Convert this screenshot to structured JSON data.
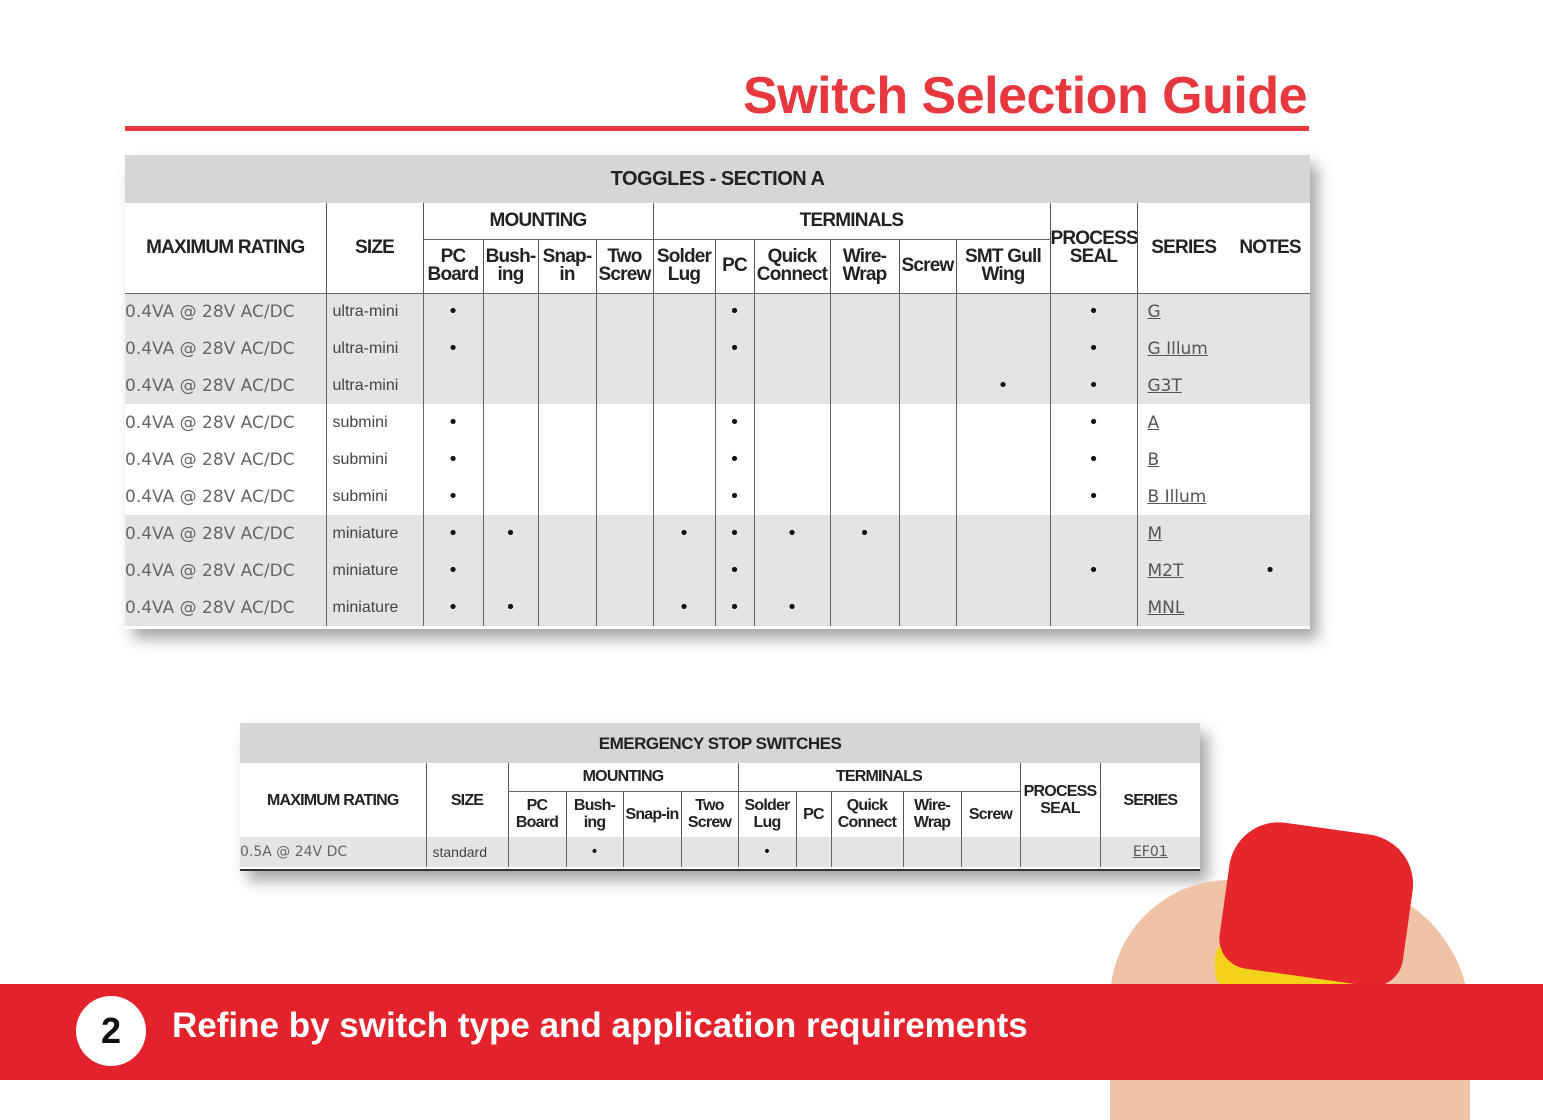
{
  "page_title": "Switch Selection Guide",
  "toggles": {
    "section_title": "TOGGLES - SECTION A",
    "headers": {
      "max_rating": "MAXIMUM RATING",
      "size": "SIZE",
      "mounting": "MOUNTING",
      "terminals": "TERMINALS",
      "process_seal": "PROCESS SEAL",
      "series": "SERIES",
      "notes": "NOTES",
      "mounting_cols": [
        "PC Board",
        "Bush-ing",
        "Snap-in",
        "Two Screw"
      ],
      "terminal_cols": [
        "Solder Lug",
        "PC",
        "Quick Connect",
        "Wire-Wrap",
        "Screw",
        "SMT Gull Wing"
      ]
    },
    "flag_keys": [
      "pc_board",
      "bushing",
      "snap_in",
      "two_screw",
      "solder_lug",
      "pc",
      "quick_connect",
      "wire_wrap",
      "screw",
      "smt_gull_wing",
      "process_seal"
    ],
    "rows": [
      {
        "rating": "0.4VA @ 28V AC/DC",
        "size": "ultra-mini",
        "series": "G",
        "flags": [
          "pc_board",
          "pc",
          "process_seal"
        ],
        "notes": false
      },
      {
        "rating": "0.4VA @ 28V AC/DC",
        "size": "ultra-mini",
        "series": "G Illum",
        "flags": [
          "pc_board",
          "pc",
          "process_seal"
        ],
        "notes": false
      },
      {
        "rating": "0.4VA @ 28V AC/DC",
        "size": "ultra-mini",
        "series": "G3T",
        "flags": [
          "smt_gull_wing",
          "process_seal"
        ],
        "notes": false
      },
      {
        "rating": "0.4VA @ 28V AC/DC",
        "size": "submini",
        "series": "A",
        "flags": [
          "pc_board",
          "pc",
          "process_seal"
        ],
        "notes": false
      },
      {
        "rating": "0.4VA @ 28V AC/DC",
        "size": "submini",
        "series": "B",
        "flags": [
          "pc_board",
          "pc",
          "process_seal"
        ],
        "notes": false
      },
      {
        "rating": "0.4VA @ 28V AC/DC",
        "size": "submini",
        "series": "B Illum",
        "flags": [
          "pc_board",
          "pc",
          "process_seal"
        ],
        "notes": false
      },
      {
        "rating": "0.4VA @ 28V AC/DC",
        "size": "miniature",
        "series": "M",
        "flags": [
          "pc_board",
          "bushing",
          "solder_lug",
          "pc",
          "quick_connect",
          "wire_wrap"
        ],
        "notes": false
      },
      {
        "rating": "0.4VA @ 28V AC/DC",
        "size": "miniature",
        "series": "M2T",
        "flags": [
          "pc_board",
          "pc",
          "process_seal"
        ],
        "notes": true
      },
      {
        "rating": "0.4VA @ 28V AC/DC",
        "size": "miniature",
        "series": "MNL",
        "flags": [
          "pc_board",
          "bushing",
          "solder_lug",
          "pc",
          "quick_connect"
        ],
        "notes": false
      }
    ]
  },
  "estop": {
    "section_title": "EMERGENCY STOP SWITCHES",
    "headers": {
      "max_rating": "MAXIMUM RATING",
      "size": "SIZE",
      "mounting": "MOUNTING",
      "terminals": "TERMINALS",
      "process_seal": "PROCESS SEAL",
      "series": "SERIES",
      "mounting_cols": [
        "PC Board",
        "Bush-ing",
        "Snap-in",
        "Two Screw"
      ],
      "terminal_cols": [
        "Solder Lug",
        "PC",
        "Quick Connect",
        "Wire-Wrap",
        "Screw"
      ]
    },
    "flag_keys": [
      "pc_board",
      "bushing",
      "snap_in",
      "two_screw",
      "solder_lug",
      "pc",
      "quick_connect",
      "wire_wrap",
      "screw",
      "process_seal"
    ],
    "rows": [
      {
        "rating": "0.5A @ 24V DC",
        "size": "standard",
        "series": "EF01",
        "flags": [
          "bushing",
          "solder_lug"
        ]
      }
    ]
  },
  "dot_symbol": "•",
  "banner": {
    "step": "2",
    "text": "Refine by switch type and application requirements",
    "color": "#e3222b"
  },
  "accent_color": "#e8383f"
}
